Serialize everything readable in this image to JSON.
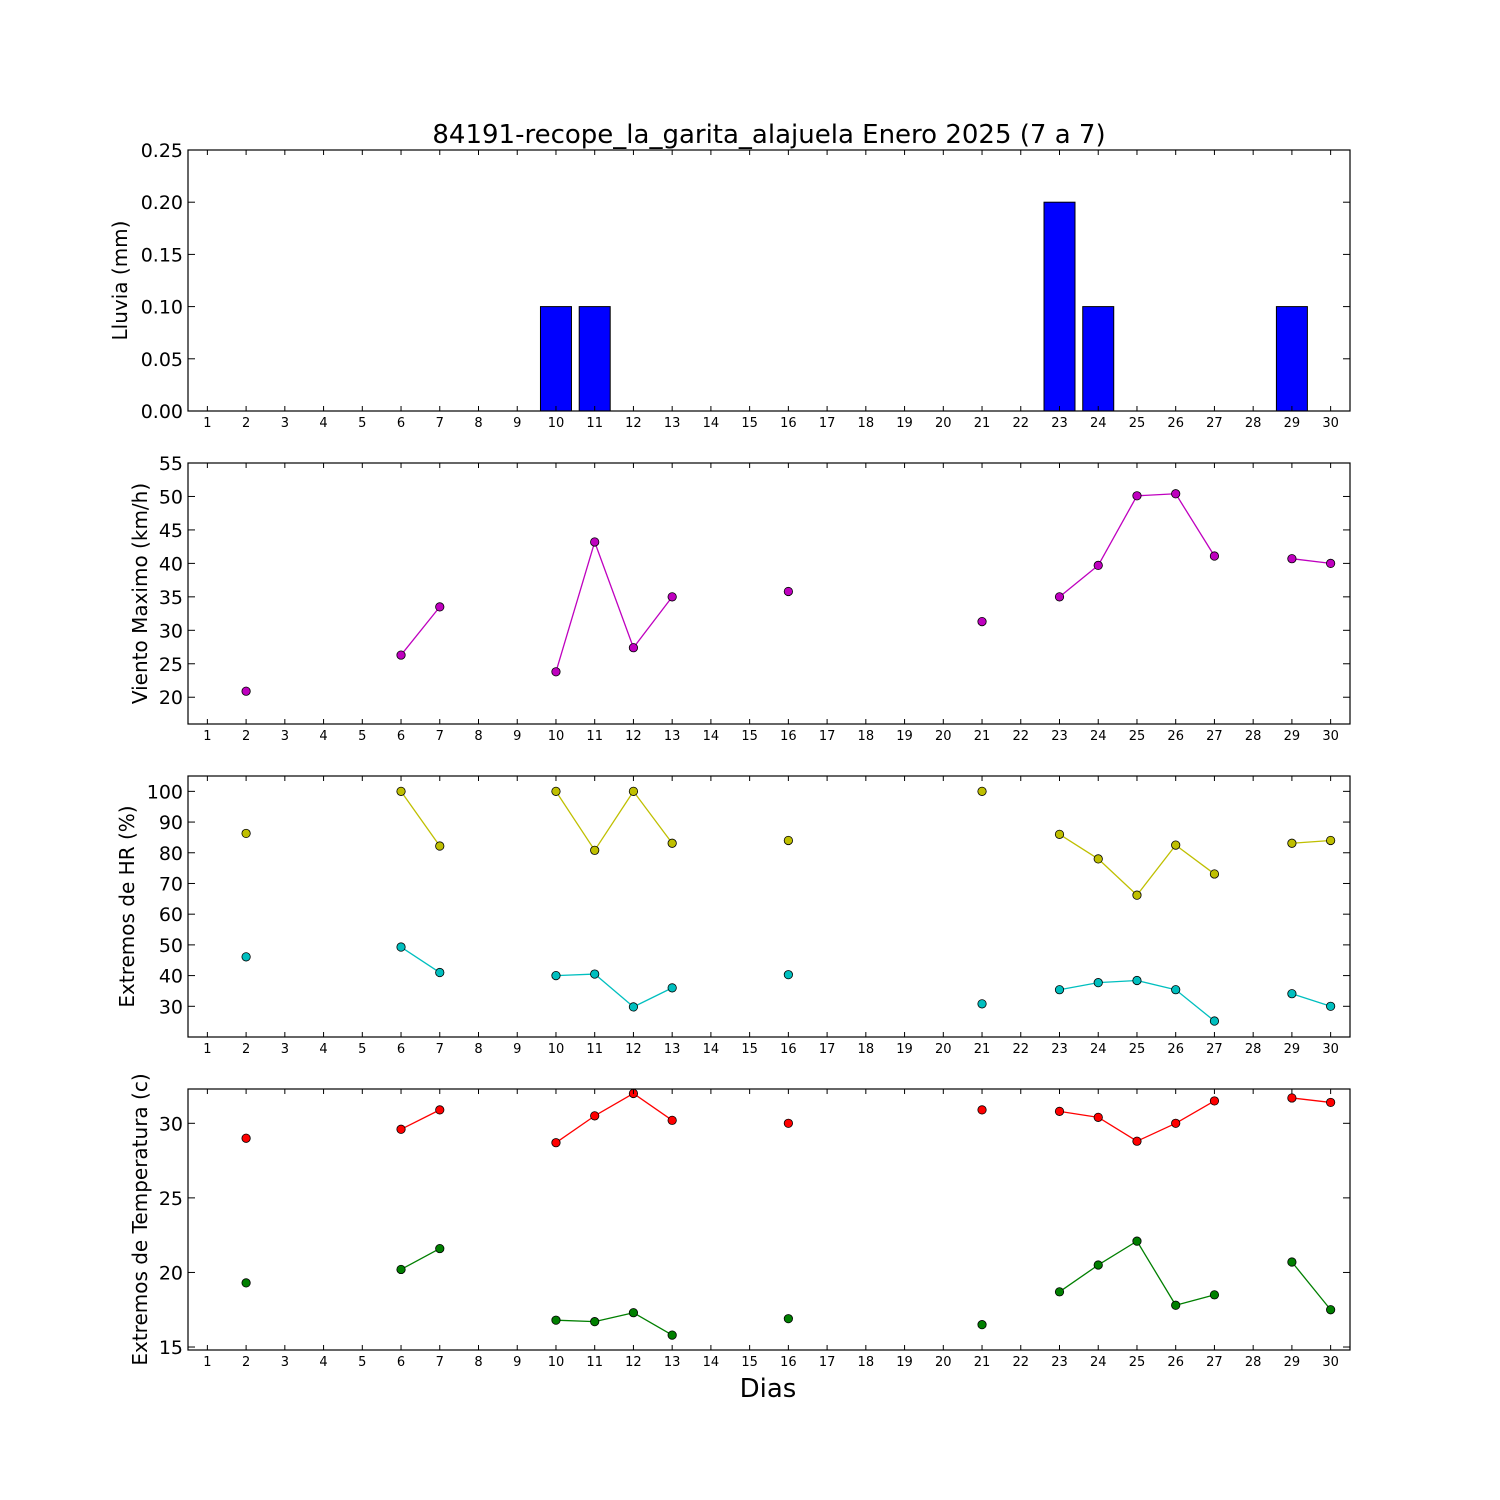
{
  "figure": {
    "title": "84191-recope_la_garita_alajuela Enero 2025  (7 a 7)",
    "xlabel": "Dias"
  },
  "chart_data": [
    {
      "type": "bar",
      "ylabel": "Lluvia (mm)",
      "ylim": [
        0,
        0.25
      ],
      "yticks": [
        0.0,
        0.05,
        0.1,
        0.15,
        0.2,
        0.25
      ],
      "ytick_labels": [
        "0.00",
        "0.05",
        "0.10",
        "0.15",
        "0.20",
        "0.25"
      ],
      "xlim": [
        0.5,
        30.5
      ],
      "xticks": [
        1,
        2,
        3,
        4,
        5,
        6,
        7,
        8,
        9,
        10,
        11,
        12,
        13,
        14,
        15,
        16,
        17,
        18,
        19,
        20,
        21,
        22,
        23,
        24,
        25,
        26,
        27,
        28,
        29,
        30
      ],
      "color": "#0000ff",
      "x": [
        1,
        2,
        3,
        4,
        5,
        6,
        7,
        8,
        9,
        10,
        11,
        12,
        13,
        14,
        15,
        16,
        17,
        18,
        19,
        20,
        21,
        22,
        23,
        24,
        25,
        26,
        27,
        28,
        29,
        30
      ],
      "values": [
        0,
        0,
        0,
        0,
        0,
        0,
        0,
        0,
        0,
        0.1,
        0.1,
        0,
        0,
        0,
        0,
        0,
        0,
        0,
        0,
        0,
        0,
        0,
        0.2,
        0.1,
        0,
        0,
        0,
        0,
        0.1,
        0
      ]
    },
    {
      "type": "line",
      "ylabel": "Viento Maximo (km/h)",
      "ylim": [
        16,
        55
      ],
      "yticks": [
        20,
        25,
        30,
        35,
        40,
        45,
        50,
        55
      ],
      "ytick_labels": [
        "20",
        "25",
        "30",
        "35",
        "40",
        "45",
        "50",
        "55"
      ],
      "xlim": [
        0.5,
        30.5
      ],
      "xticks": [
        1,
        2,
        3,
        4,
        5,
        6,
        7,
        8,
        9,
        10,
        11,
        12,
        13,
        14,
        15,
        16,
        17,
        18,
        19,
        20,
        21,
        22,
        23,
        24,
        25,
        26,
        27,
        28,
        29,
        30
      ],
      "x": [
        1,
        2,
        3,
        4,
        5,
        6,
        7,
        8,
        9,
        10,
        11,
        12,
        13,
        14,
        15,
        16,
        17,
        18,
        19,
        20,
        21,
        22,
        23,
        24,
        25,
        26,
        27,
        28,
        29,
        30
      ],
      "series": [
        {
          "color": "#bf00bf",
          "values": [
            null,
            20.9,
            null,
            null,
            null,
            26.3,
            33.5,
            null,
            null,
            23.8,
            43.2,
            27.4,
            35.0,
            null,
            null,
            35.8,
            null,
            null,
            null,
            null,
            31.3,
            null,
            35.0,
            39.7,
            50.1,
            50.4,
            41.1,
            null,
            40.7,
            40.0
          ]
        }
      ]
    },
    {
      "type": "line",
      "ylabel": "Extremos de HR (%)",
      "ylim": [
        20,
        105
      ],
      "yticks": [
        30,
        40,
        50,
        60,
        70,
        80,
        90,
        100
      ],
      "ytick_labels": [
        "30",
        "40",
        "50",
        "60",
        "70",
        "80",
        "90",
        "100"
      ],
      "xlim": [
        0.5,
        30.5
      ],
      "xticks": [
        1,
        2,
        3,
        4,
        5,
        6,
        7,
        8,
        9,
        10,
        11,
        12,
        13,
        14,
        15,
        16,
        17,
        18,
        19,
        20,
        21,
        22,
        23,
        24,
        25,
        26,
        27,
        28,
        29,
        30
      ],
      "x": [
        1,
        2,
        3,
        4,
        5,
        6,
        7,
        8,
        9,
        10,
        11,
        12,
        13,
        14,
        15,
        16,
        17,
        18,
        19,
        20,
        21,
        22,
        23,
        24,
        25,
        26,
        27,
        28,
        29,
        30
      ],
      "series": [
        {
          "color": "#bfbf00",
          "values": [
            null,
            86.3,
            null,
            null,
            null,
            100,
            82.2,
            null,
            null,
            100,
            80.8,
            100,
            83.1,
            null,
            null,
            84.0,
            null,
            null,
            null,
            null,
            100,
            null,
            86.0,
            78.0,
            66.2,
            82.5,
            73.1,
            null,
            83.1,
            84.0
          ]
        },
        {
          "color": "#00bfbf",
          "values": [
            null,
            46.1,
            null,
            null,
            null,
            49.3,
            41.0,
            null,
            null,
            40.0,
            40.5,
            29.8,
            36.0,
            null,
            null,
            40.3,
            null,
            null,
            null,
            null,
            30.8,
            null,
            35.4,
            37.7,
            38.4,
            35.4,
            25.2,
            null,
            34.1,
            30.0
          ]
        }
      ]
    },
    {
      "type": "line",
      "ylabel": "Extremos de Temperatura (c)",
      "ylim": [
        14.8,
        32.3
      ],
      "yticks": [
        15,
        20,
        25,
        30
      ],
      "ytick_labels": [
        "15",
        "20",
        "25",
        "30"
      ],
      "xlim": [
        0.5,
        30.5
      ],
      "xticks": [
        1,
        2,
        3,
        4,
        5,
        6,
        7,
        8,
        9,
        10,
        11,
        12,
        13,
        14,
        15,
        16,
        17,
        18,
        19,
        20,
        21,
        22,
        23,
        24,
        25,
        26,
        27,
        28,
        29,
        30
      ],
      "x": [
        1,
        2,
        3,
        4,
        5,
        6,
        7,
        8,
        9,
        10,
        11,
        12,
        13,
        14,
        15,
        16,
        17,
        18,
        19,
        20,
        21,
        22,
        23,
        24,
        25,
        26,
        27,
        28,
        29,
        30
      ],
      "series": [
        {
          "color": "#ff0000",
          "values": [
            null,
            29.0,
            null,
            null,
            null,
            29.6,
            30.9,
            null,
            null,
            28.7,
            30.5,
            32.0,
            30.2,
            null,
            null,
            30.0,
            null,
            null,
            null,
            null,
            30.9,
            null,
            30.8,
            30.4,
            28.8,
            30.0,
            31.5,
            null,
            31.7,
            31.4
          ]
        },
        {
          "color": "#007f00",
          "values": [
            null,
            19.3,
            null,
            null,
            null,
            20.2,
            21.6,
            null,
            null,
            16.8,
            16.7,
            17.3,
            15.8,
            null,
            null,
            16.9,
            null,
            null,
            null,
            null,
            16.5,
            null,
            18.7,
            20.5,
            22.1,
            17.8,
            18.5,
            null,
            20.7,
            17.5
          ]
        }
      ]
    }
  ]
}
